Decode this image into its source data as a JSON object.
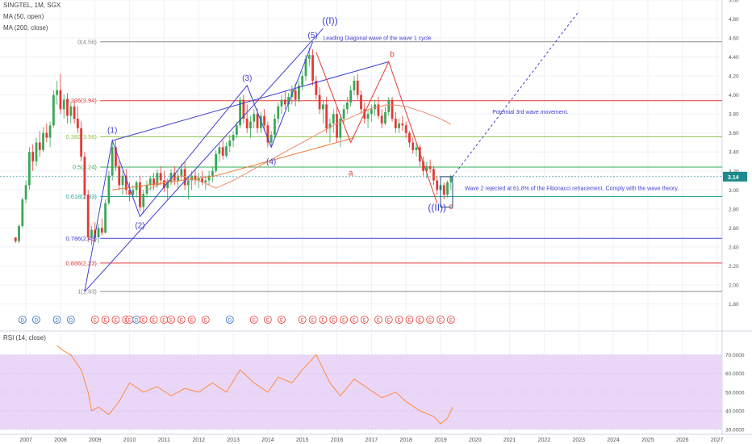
{
  "header": {
    "symbol": "SINGTEL, 1M, SGX",
    "ma50_label": "MA (50, open)",
    "ma200_label": "MA (200, close)"
  },
  "rsi_panel": {
    "label": "RSI (14, close)"
  },
  "colors": {
    "bullish": "#3aa757",
    "bearish": "#e53935",
    "wave": "#3f3fd1",
    "corrective": "#e53935",
    "ma50": "#f08a6b",
    "ma200": "#f07c3a",
    "rsi": "#ff8c42",
    "rsi_band": "#ead7f7",
    "last_price_tag": "#1e8a8a"
  },
  "chart_data": {
    "type": "candlestick",
    "price_axis": {
      "min": 1.6,
      "max": 5.0,
      "ticks": [
        1.8,
        2.0,
        2.2,
        2.4,
        2.6,
        2.8,
        3.0,
        3.2,
        3.4,
        3.6,
        3.8,
        4.0,
        4.2,
        4.4,
        4.6,
        4.8,
        5.0
      ]
    },
    "last_price": 3.14,
    "time_axis": {
      "start": 2006.25,
      "end": 2027.15,
      "ticks": [
        2007,
        2008,
        2009,
        2010,
        2011,
        2012,
        2013,
        2014,
        2015,
        2016,
        2017,
        2018,
        2019,
        2020,
        2021,
        2022,
        2023,
        2024,
        2025,
        2026,
        2027
      ]
    },
    "fib_levels": [
      {
        "label": "0(4.56)",
        "value": 4.56,
        "color": "#8a8a8a"
      },
      {
        "label": "0.236(3.94)",
        "value": 3.94,
        "color": "#e53935"
      },
      {
        "label": "0.382(3.56)",
        "value": 3.56,
        "color": "#8bc34a"
      },
      {
        "label": "0.5(3.24)",
        "value": 3.24,
        "color": "#3aa757"
      },
      {
        "label": "0.618(2.93)",
        "value": 2.93,
        "color": "#26a69a"
      },
      {
        "label": "0.786(2.49)",
        "value": 2.49,
        "color": "#3f3fd1"
      },
      {
        "label": "0.886(2.23)",
        "value": 2.23,
        "color": "#e53935"
      },
      {
        "label": "1(1.93)",
        "value": 1.93,
        "color": "#8a8a8a"
      }
    ],
    "candles": [
      [
        2006.7,
        2.5,
        2.5,
        2.44,
        2.46
      ],
      [
        2006.8,
        2.46,
        2.64,
        2.44,
        2.62
      ],
      [
        2006.9,
        2.62,
        2.92,
        2.6,
        2.9
      ],
      [
        2007.0,
        2.9,
        3.1,
        2.86,
        3.05
      ],
      [
        2007.1,
        3.05,
        3.45,
        3.0,
        3.4
      ],
      [
        2007.2,
        3.4,
        3.48,
        3.2,
        3.3
      ],
      [
        2007.3,
        3.3,
        3.55,
        3.25,
        3.5
      ],
      [
        2007.4,
        3.5,
        3.62,
        3.35,
        3.42
      ],
      [
        2007.5,
        3.42,
        3.66,
        3.4,
        3.6
      ],
      [
        2007.6,
        3.6,
        3.7,
        3.5,
        3.55
      ],
      [
        2007.7,
        3.55,
        3.72,
        3.45,
        3.68
      ],
      [
        2007.8,
        3.68,
        4.05,
        3.66,
        4.0
      ],
      [
        2007.9,
        4.0,
        4.15,
        3.9,
        4.05
      ],
      [
        2008.0,
        4.05,
        4.22,
        3.8,
        3.85
      ],
      [
        2008.1,
        3.85,
        4.0,
        3.75,
        3.95
      ],
      [
        2008.2,
        3.95,
        4.02,
        3.7,
        3.78
      ],
      [
        2008.3,
        3.78,
        3.92,
        3.7,
        3.88
      ],
      [
        2008.4,
        3.88,
        3.95,
        3.7,
        3.75
      ],
      [
        2008.5,
        3.75,
        3.88,
        3.6,
        3.65
      ],
      [
        2008.6,
        3.65,
        3.72,
        3.3,
        3.35
      ],
      [
        2008.7,
        3.35,
        3.4,
        2.9,
        2.95
      ],
      [
        2008.8,
        2.95,
        3.0,
        2.45,
        2.5
      ],
      [
        2008.9,
        2.5,
        2.62,
        2.42,
        2.58
      ],
      [
        2009.0,
        2.58,
        2.66,
        2.45,
        2.5
      ],
      [
        2009.1,
        2.5,
        2.64,
        2.44,
        2.6
      ],
      [
        2009.2,
        2.6,
        2.7,
        2.52,
        2.55
      ],
      [
        2009.3,
        2.55,
        2.9,
        2.54,
        2.86
      ],
      [
        2009.4,
        2.86,
        3.2,
        2.84,
        3.15
      ],
      [
        2009.5,
        3.15,
        3.5,
        3.1,
        3.45
      ],
      [
        2009.6,
        3.45,
        3.52,
        3.2,
        3.25
      ],
      [
        2009.7,
        3.25,
        3.3,
        3.0,
        3.05
      ],
      [
        2009.8,
        3.05,
        3.2,
        2.95,
        3.15
      ],
      [
        2009.9,
        3.15,
        3.22,
        2.95,
        3.0
      ],
      [
        2010.0,
        3.0,
        3.08,
        2.88,
        2.95
      ],
      [
        2010.1,
        2.95,
        3.05,
        2.9,
        3.0
      ],
      [
        2010.2,
        3.0,
        3.1,
        2.92,
        3.08
      ],
      [
        2010.3,
        3.08,
        3.15,
        2.78,
        2.82
      ],
      [
        2010.4,
        2.82,
        3.0,
        2.75,
        2.96
      ],
      [
        2010.5,
        2.96,
        3.1,
        2.92,
        3.05
      ],
      [
        2010.6,
        3.05,
        3.15,
        3.0,
        3.12
      ],
      [
        2010.7,
        3.12,
        3.18,
        3.0,
        3.05
      ],
      [
        2010.8,
        3.05,
        3.22,
        3.02,
        3.18
      ],
      [
        2010.9,
        3.18,
        3.25,
        3.05,
        3.1
      ],
      [
        2011.0,
        3.1,
        3.2,
        2.98,
        3.02
      ],
      [
        2011.1,
        3.02,
        3.12,
        2.9,
        3.08
      ],
      [
        2011.2,
        3.08,
        3.22,
        3.05,
        3.18
      ],
      [
        2011.3,
        3.18,
        3.25,
        3.05,
        3.1
      ],
      [
        2011.4,
        3.1,
        3.2,
        3.0,
        3.15
      ],
      [
        2011.5,
        3.15,
        3.28,
        3.1,
        3.22
      ],
      [
        2011.6,
        3.22,
        3.3,
        3.0,
        3.05
      ],
      [
        2011.7,
        3.05,
        3.15,
        2.9,
        3.1
      ],
      [
        2011.8,
        3.1,
        3.2,
        3.0,
        3.15
      ],
      [
        2011.9,
        3.15,
        3.22,
        3.05,
        3.1
      ],
      [
        2012.0,
        3.1,
        3.18,
        3.02,
        3.12
      ],
      [
        2012.1,
        3.12,
        3.2,
        3.05,
        3.08
      ],
      [
        2012.2,
        3.08,
        3.15,
        3.0,
        3.1
      ],
      [
        2012.3,
        3.1,
        3.2,
        3.05,
        3.15
      ],
      [
        2012.4,
        3.15,
        3.24,
        3.08,
        3.2
      ],
      [
        2012.5,
        3.2,
        3.42,
        3.18,
        3.38
      ],
      [
        2012.6,
        3.38,
        3.48,
        3.3,
        3.45
      ],
      [
        2012.7,
        3.45,
        3.52,
        3.32,
        3.36
      ],
      [
        2012.8,
        3.36,
        3.5,
        3.34,
        3.46
      ],
      [
        2012.9,
        3.46,
        3.58,
        3.4,
        3.52
      ],
      [
        2013.0,
        3.52,
        3.62,
        3.45,
        3.58
      ],
      [
        2013.1,
        3.58,
        3.72,
        3.55,
        3.68
      ],
      [
        2013.2,
        3.68,
        3.98,
        3.65,
        3.95
      ],
      [
        2013.3,
        3.95,
        4.0,
        3.7,
        3.75
      ],
      [
        2013.4,
        3.75,
        3.9,
        3.6,
        3.65
      ],
      [
        2013.5,
        3.65,
        3.78,
        3.55,
        3.72
      ],
      [
        2013.6,
        3.72,
        3.85,
        3.65,
        3.8
      ],
      [
        2013.7,
        3.8,
        3.86,
        3.6,
        3.65
      ],
      [
        2013.8,
        3.65,
        3.82,
        3.6,
        3.78
      ],
      [
        2013.9,
        3.78,
        3.85,
        3.62,
        3.68
      ],
      [
        2014.0,
        3.68,
        3.72,
        3.45,
        3.5
      ],
      [
        2014.1,
        3.5,
        3.62,
        3.45,
        3.58
      ],
      [
        2014.2,
        3.58,
        3.8,
        3.55,
        3.75
      ],
      [
        2014.3,
        3.75,
        3.92,
        3.7,
        3.88
      ],
      [
        2014.4,
        3.88,
        4.0,
        3.8,
        3.95
      ],
      [
        2014.5,
        3.95,
        4.05,
        3.85,
        3.9
      ],
      [
        2014.6,
        3.9,
        4.02,
        3.82,
        3.98
      ],
      [
        2014.7,
        3.98,
        4.1,
        3.9,
        4.05
      ],
      [
        2014.8,
        4.05,
        4.12,
        3.88,
        3.95
      ],
      [
        2014.9,
        3.95,
        4.15,
        3.92,
        4.1
      ],
      [
        2015.0,
        4.1,
        4.25,
        4.05,
        4.2
      ],
      [
        2015.1,
        4.2,
        4.42,
        4.15,
        4.38
      ],
      [
        2015.2,
        4.38,
        4.5,
        4.3,
        4.42
      ],
      [
        2015.3,
        4.42,
        4.48,
        4.1,
        4.15
      ],
      [
        2015.4,
        4.15,
        4.2,
        3.95,
        4.0
      ],
      [
        2015.5,
        4.0,
        4.08,
        3.8,
        3.85
      ],
      [
        2015.6,
        3.85,
        3.95,
        3.7,
        3.9
      ],
      [
        2015.7,
        3.9,
        3.98,
        3.6,
        3.65
      ],
      [
        2015.8,
        3.65,
        3.75,
        3.5,
        3.7
      ],
      [
        2015.9,
        3.7,
        3.85,
        3.6,
        3.8
      ],
      [
        2016.0,
        3.8,
        3.88,
        3.5,
        3.55
      ],
      [
        2016.1,
        3.55,
        3.8,
        3.45,
        3.75
      ],
      [
        2016.2,
        3.75,
        3.9,
        3.7,
        3.85
      ],
      [
        2016.3,
        3.85,
        3.98,
        3.8,
        3.92
      ],
      [
        2016.4,
        3.92,
        4.1,
        3.88,
        4.05
      ],
      [
        2016.5,
        4.05,
        4.2,
        4.0,
        4.15
      ],
      [
        2016.6,
        4.15,
        4.22,
        3.95,
        4.0
      ],
      [
        2016.7,
        4.0,
        4.05,
        3.8,
        3.85
      ],
      [
        2016.8,
        3.85,
        3.92,
        3.7,
        3.75
      ],
      [
        2016.9,
        3.75,
        3.85,
        3.65,
        3.8
      ],
      [
        2017.0,
        3.8,
        3.9,
        3.72,
        3.85
      ],
      [
        2017.1,
        3.85,
        3.95,
        3.78,
        3.9
      ],
      [
        2017.2,
        3.9,
        3.98,
        3.75,
        3.78
      ],
      [
        2017.3,
        3.78,
        3.85,
        3.65,
        3.7
      ],
      [
        2017.4,
        3.7,
        3.88,
        3.68,
        3.82
      ],
      [
        2017.5,
        3.82,
        3.98,
        3.78,
        3.95
      ],
      [
        2017.6,
        3.95,
        3.98,
        3.72,
        3.75
      ],
      [
        2017.7,
        3.75,
        3.82,
        3.6,
        3.65
      ],
      [
        2017.8,
        3.65,
        3.75,
        3.6,
        3.7
      ],
      [
        2017.9,
        3.7,
        3.78,
        3.62,
        3.68
      ],
      [
        2018.0,
        3.68,
        3.72,
        3.55,
        3.6
      ],
      [
        2018.1,
        3.6,
        3.62,
        3.45,
        3.5
      ],
      [
        2018.2,
        3.5,
        3.55,
        3.38,
        3.42
      ],
      [
        2018.3,
        3.42,
        3.5,
        3.35,
        3.45
      ],
      [
        2018.4,
        3.45,
        3.48,
        3.25,
        3.3
      ],
      [
        2018.5,
        3.3,
        3.35,
        3.15,
        3.2
      ],
      [
        2018.6,
        3.2,
        3.3,
        3.12,
        3.25
      ],
      [
        2018.7,
        3.25,
        3.32,
        3.18,
        3.22
      ],
      [
        2018.8,
        3.22,
        3.25,
        3.05,
        3.1
      ],
      [
        2018.9,
        3.1,
        3.15,
        2.95,
        3.0
      ],
      [
        2019.0,
        3.0,
        3.1,
        2.86,
        3.05
      ],
      [
        2019.1,
        3.05,
        3.08,
        2.9,
        2.95
      ],
      [
        2019.2,
        2.95,
        3.1,
        2.92,
        3.08
      ],
      [
        2019.3,
        3.08,
        3.16,
        3.0,
        3.14
      ]
    ],
    "ma50": [
      [
        2010.5,
        3.0
      ],
      [
        2011.0,
        3.08
      ],
      [
        2011.5,
        3.15
      ],
      [
        2012.0,
        3.1
      ],
      [
        2012.5,
        3.02
      ],
      [
        2013.0,
        3.1
      ],
      [
        2013.5,
        3.2
      ],
      [
        2014.0,
        3.3
      ],
      [
        2014.5,
        3.4
      ],
      [
        2015.0,
        3.5
      ],
      [
        2015.5,
        3.6
      ],
      [
        2016.0,
        3.7
      ],
      [
        2016.5,
        3.78
      ],
      [
        2017.0,
        3.86
      ],
      [
        2017.5,
        3.9
      ],
      [
        2018.0,
        3.88
      ],
      [
        2018.5,
        3.82
      ],
      [
        2019.0,
        3.75
      ],
      [
        2019.3,
        3.69
      ]
    ],
    "ma200": [
      [
        2009.5,
        3.0
      ],
      [
        2010.5,
        3.05
      ],
      [
        2011.5,
        3.1
      ],
      [
        2012.5,
        3.15
      ],
      [
        2013.5,
        3.25
      ],
      [
        2014.5,
        3.35
      ],
      [
        2015.5,
        3.45
      ],
      [
        2016.5,
        3.55
      ]
    ],
    "wave_labels": [
      {
        "text": "(1)",
        "x": 2009.5,
        "y": 3.6,
        "color": "#3f3fd1"
      },
      {
        "text": "(2)",
        "x": 2010.3,
        "y": 2.6,
        "color": "#3f3fd1"
      },
      {
        "text": "(3)",
        "x": 2013.4,
        "y": 4.15,
        "color": "#3f3fd1"
      },
      {
        "text": "(4)",
        "x": 2014.1,
        "y": 3.27,
        "color": "#3f3fd1"
      },
      {
        "text": "(5)",
        "x": 2015.3,
        "y": 4.6,
        "color": "#3f3fd1"
      },
      {
        "text": "((I))",
        "x": 2015.8,
        "y": 4.75,
        "color": "#3f3fd1"
      },
      {
        "text": "((II))",
        "x": 2018.9,
        "y": 2.78,
        "color": "#3f3fd1"
      },
      {
        "text": "a",
        "x": 2016.4,
        "y": 3.15,
        "color": "#e53935"
      },
      {
        "text": "b",
        "x": 2017.6,
        "y": 4.4,
        "color": "#e53935"
      },
      {
        "text": "c",
        "x": 2019.3,
        "y": 2.8,
        "color": "#e53935"
      }
    ],
    "annotations": [
      {
        "text": "Leading Diagonal wave of the wave 1 cycle",
        "x": 2015.6,
        "y": 4.58,
        "color": "#3f3fd1"
      },
      {
        "text": "Potential 3rd wave movement.",
        "x": 2020.5,
        "y": 3.8,
        "color": "#3f3fd1"
      },
      {
        "text": "Wave 2 rejected at 61.8% of the Fibonacci retracement. Comply with the wave theory.",
        "x": 2019.7,
        "y": 3.0,
        "color": "#3f3fd1"
      }
    ],
    "events": [
      [
        2006.9,
        "D"
      ],
      [
        2007.3,
        "D"
      ],
      [
        2007.9,
        "D"
      ],
      [
        2008.3,
        "D"
      ],
      [
        2009.0,
        "E"
      ],
      [
        2009.3,
        "E"
      ],
      [
        2009.6,
        "E"
      ],
      [
        2009.9,
        "E"
      ],
      [
        2010.0,
        "E"
      ],
      [
        2010.2,
        "D"
      ],
      [
        2010.4,
        "E"
      ],
      [
        2010.7,
        "E"
      ],
      [
        2011.0,
        "E"
      ],
      [
        2011.2,
        "E"
      ],
      [
        2011.5,
        "E"
      ],
      [
        2011.8,
        "E"
      ],
      [
        2012.2,
        "E"
      ],
      [
        2012.9,
        "D"
      ],
      [
        2013.6,
        "E"
      ],
      [
        2014.0,
        "E"
      ],
      [
        2014.4,
        "E"
      ],
      [
        2015.0,
        "E"
      ],
      [
        2015.3,
        "E"
      ],
      [
        2015.6,
        "E"
      ],
      [
        2015.9,
        "E"
      ],
      [
        2016.2,
        "E"
      ],
      [
        2016.5,
        "E"
      ],
      [
        2016.8,
        "E"
      ],
      [
        2017.2,
        "E"
      ],
      [
        2017.5,
        "E"
      ],
      [
        2017.8,
        "E"
      ],
      [
        2018.1,
        "E"
      ],
      [
        2018.4,
        "E"
      ],
      [
        2018.7,
        "E"
      ],
      [
        2019.0,
        "E"
      ],
      [
        2019.3,
        "E"
      ]
    ],
    "rsi": {
      "min": 30,
      "max": 70,
      "ticks": [
        30.0,
        40.0,
        50.0,
        60.0,
        70.0
      ],
      "tick_labels": [
        "30.0000",
        "40.0000",
        "50.0000",
        "60.0000",
        "70.0000"
      ],
      "points": [
        [
          2007.9,
          75
        ],
        [
          2008.1,
          72
        ],
        [
          2008.3,
          70
        ],
        [
          2008.6,
          62
        ],
        [
          2008.8,
          50
        ],
        [
          2008.9,
          40
        ],
        [
          2009.1,
          42
        ],
        [
          2009.4,
          38
        ],
        [
          2009.7,
          45
        ],
        [
          2010.0,
          55
        ],
        [
          2010.4,
          50
        ],
        [
          2010.8,
          53
        ],
        [
          2011.2,
          48
        ],
        [
          2011.6,
          52
        ],
        [
          2012.0,
          50
        ],
        [
          2012.4,
          55
        ],
        [
          2012.8,
          50
        ],
        [
          2013.2,
          62
        ],
        [
          2013.6,
          55
        ],
        [
          2014.0,
          50
        ],
        [
          2014.3,
          58
        ],
        [
          2014.7,
          55
        ],
        [
          2015.0,
          62
        ],
        [
          2015.4,
          70
        ],
        [
          2015.8,
          55
        ],
        [
          2016.1,
          48
        ],
        [
          2016.5,
          57
        ],
        [
          2016.9,
          52
        ],
        [
          2017.3,
          47
        ],
        [
          2017.7,
          50
        ],
        [
          2018.0,
          45
        ],
        [
          2018.4,
          40
        ],
        [
          2018.8,
          37
        ],
        [
          2019.0,
          33
        ],
        [
          2019.2,
          36
        ],
        [
          2019.35,
          42
        ]
      ]
    }
  }
}
